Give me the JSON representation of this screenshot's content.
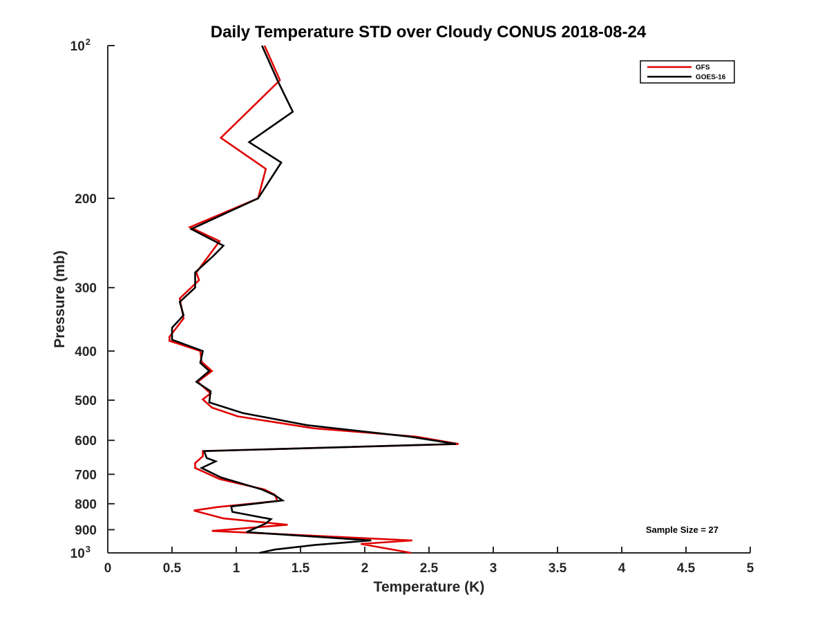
{
  "chart_data": {
    "type": "line",
    "orientation": "profile",
    "title": "Daily Temperature STD over Cloudy CONUS 2018-08-24",
    "xlabel": "Temperature (K)",
    "ylabel": "Pressure (mb)",
    "xlim": [
      0,
      5
    ],
    "ylim": [
      100,
      1000
    ],
    "yscale": "log",
    "y_reversed": true,
    "grid": false,
    "legend_position": "top-right",
    "xticks": [
      {
        "value": 0,
        "label": "0"
      },
      {
        "value": 0.5,
        "label": "0.5"
      },
      {
        "value": 1,
        "label": "1"
      },
      {
        "value": 1.5,
        "label": "1.5"
      },
      {
        "value": 2,
        "label": "2"
      },
      {
        "value": 2.5,
        "label": "2.5"
      },
      {
        "value": 3,
        "label": "3"
      },
      {
        "value": 3.5,
        "label": "3.5"
      },
      {
        "value": 4,
        "label": "4"
      },
      {
        "value": 4.5,
        "label": "4.5"
      },
      {
        "value": 5,
        "label": "5"
      }
    ],
    "yticks": [
      {
        "value": 100,
        "label": "10",
        "sup": "2"
      },
      {
        "value": 200,
        "label": "200"
      },
      {
        "value": 300,
        "label": "300"
      },
      {
        "value": 400,
        "label": "400"
      },
      {
        "value": 500,
        "label": "500"
      },
      {
        "value": 600,
        "label": "600"
      },
      {
        "value": 700,
        "label": "700"
      },
      {
        "value": 800,
        "label": "800"
      },
      {
        "value": 900,
        "label": "900"
      },
      {
        "value": 1000,
        "label": "10",
        "sup": "3"
      }
    ],
    "annotation": "Sample Size = 27",
    "series": [
      {
        "name": "GFS",
        "color": "#e00000",
        "x": [
          1.22,
          1.34,
          0.88,
          1.23,
          1.17,
          0.64,
          0.87,
          0.69,
          0.71,
          0.56,
          0.59,
          0.48,
          0.48,
          0.72,
          0.73,
          0.81,
          0.7,
          0.8,
          0.74,
          0.81,
          1.01,
          1.6,
          2.4,
          2.73,
          0.74,
          0.74,
          0.68,
          0.68,
          0.87,
          1.22,
          1.3,
          1.32,
          0.86,
          0.67,
          0.9,
          1.4,
          0.81,
          2.37,
          1.97,
          2.36
        ],
        "y": [
          100,
          117,
          152,
          175,
          200,
          228,
          243,
          280,
          290,
          315,
          345,
          375,
          382,
          400,
          420,
          438,
          460,
          485,
          498,
          517,
          538,
          568,
          590,
          610,
          630,
          645,
          665,
          680,
          715,
          750,
          768,
          790,
          812,
          825,
          855,
          880,
          905,
          945,
          960,
          1000
        ]
      },
      {
        "name": "GOES-16",
        "color": "#000000",
        "x": [
          1.2,
          1.32,
          1.44,
          1.1,
          1.35,
          1.17,
          0.65,
          0.9,
          0.82,
          0.68,
          0.68,
          0.56,
          0.59,
          0.5,
          0.5,
          0.74,
          0.72,
          0.79,
          0.69,
          0.8,
          0.79,
          1.05,
          1.55,
          2.35,
          2.71,
          0.75,
          0.77,
          0.84,
          0.73,
          0.88,
          1.2,
          1.3,
          1.36,
          0.96,
          0.97,
          1.27,
          1.23,
          1.08,
          2.05,
          1.61,
          1.3,
          1.18
        ],
        "y": [
          100,
          117,
          135,
          155,
          170,
          200,
          230,
          248,
          260,
          280,
          300,
          320,
          340,
          360,
          380,
          400,
          422,
          438,
          460,
          480,
          505,
          530,
          560,
          590,
          610,
          630,
          650,
          660,
          680,
          710,
          750,
          770,
          788,
          810,
          830,
          858,
          875,
          910,
          945,
          965,
          985,
          1000
        ]
      }
    ]
  }
}
